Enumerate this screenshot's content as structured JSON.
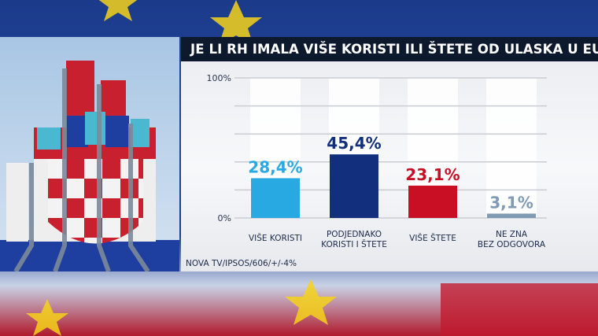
{
  "title": "JE LI RH IMALA VIŠE KORISTI ILI ŠTETE OD ULASKA U EU?",
  "source": "NOVA TV/IPSOS/606/+/-4%",
  "chart_data": {
    "type": "bar",
    "title": "JE LI RH IMALA VIŠE KORISTI ILI ŠTETE OD ULASKA U EU?",
    "categories": [
      [
        "VIŠE KORISTI"
      ],
      [
        "PODJEDNAKO",
        "KORISTI I ŠTETE"
      ],
      [
        "VIŠE ŠTETE"
      ],
      [
        "NE ZNA",
        "BEZ ODGOVORA"
      ]
    ],
    "values": [
      28.4,
      45.4,
      23.1,
      3.1
    ],
    "value_labels": [
      "28,4%",
      "45,4%",
      "23,1%",
      "3,1%"
    ],
    "colors": [
      "#29a9e1",
      "#112f7c",
      "#c90f24",
      "#7f9ab3"
    ],
    "ylim": [
      0,
      100
    ],
    "yticks": [
      0,
      20,
      40,
      60,
      80,
      100
    ],
    "ytick_labels": {
      "0": "0%",
      "100": "100%"
    },
    "grid": true,
    "xlabel": "",
    "ylabel": ""
  }
}
